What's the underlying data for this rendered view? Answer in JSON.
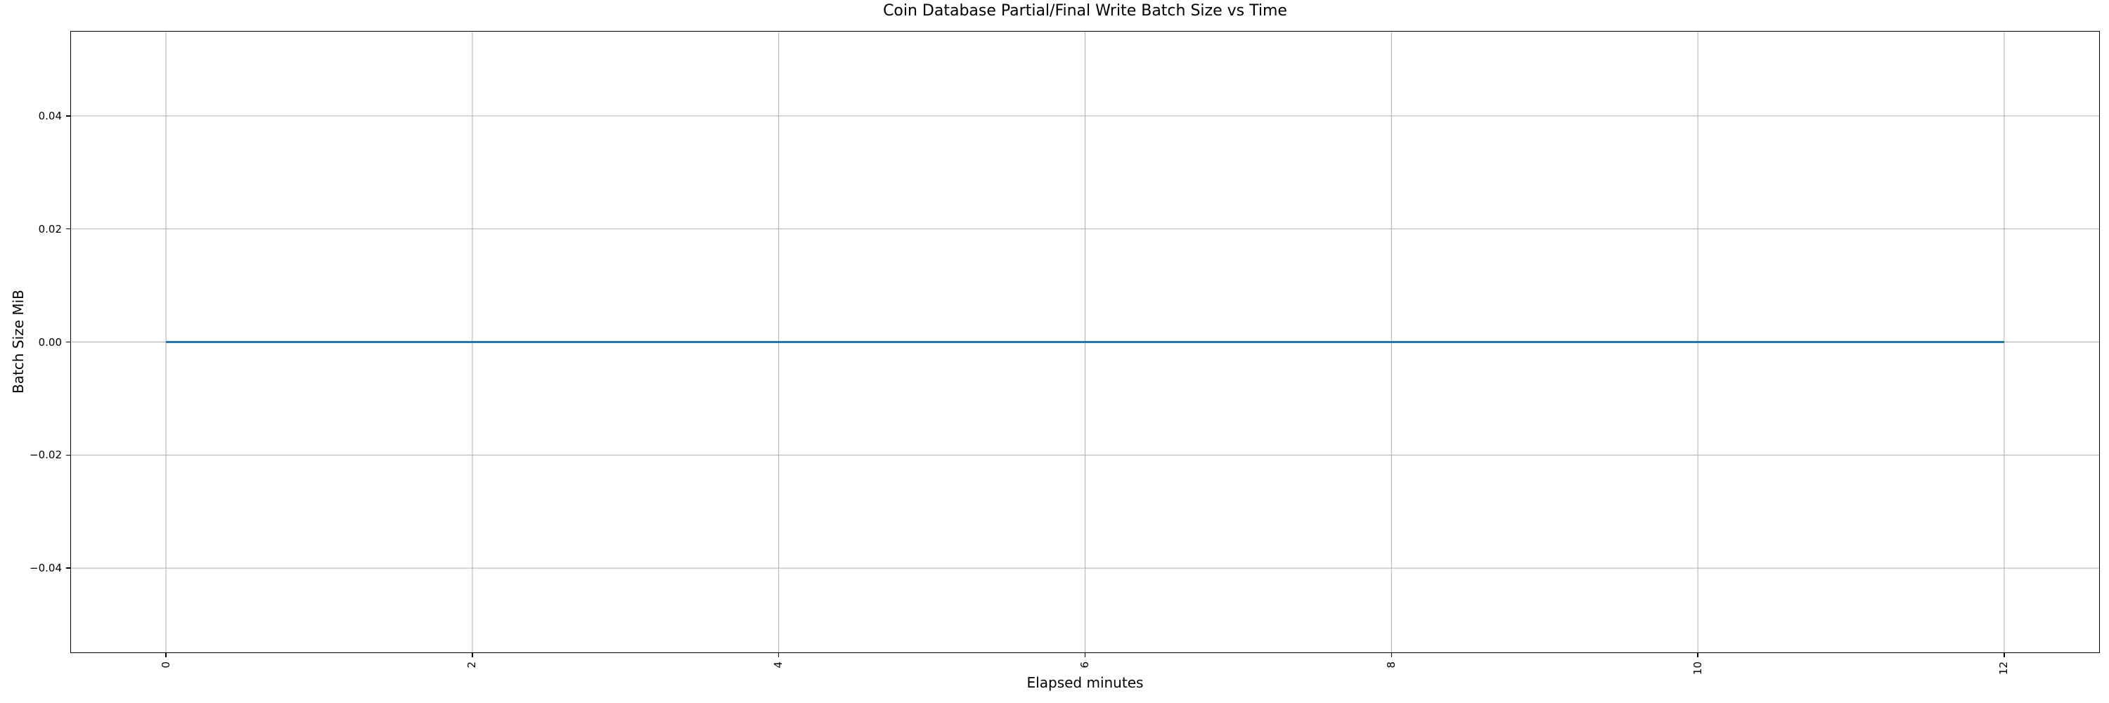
{
  "chart_data": {
    "type": "line",
    "title": "Coin Database Partial/Final Write Batch Size vs Time",
    "xlabel": "Elapsed minutes",
    "ylabel": "Batch Size MiB",
    "xlim": [
      -0.62,
      12.62
    ],
    "ylim": [
      -0.0549,
      0.0549
    ],
    "grid": true,
    "legend": false,
    "xticks": {
      "values": [
        0,
        2,
        4,
        6,
        8,
        10,
        12
      ],
      "labels": [
        "0",
        "2",
        "4",
        "6",
        "8",
        "10",
        "12"
      ],
      "rotation_degrees": 90
    },
    "yticks": {
      "values": [
        0.04,
        0.02,
        0.0,
        -0.02,
        -0.04
      ],
      "labels": [
        "0.04",
        "0.02",
        "0.00",
        "−0.02",
        "−0.04"
      ]
    },
    "series": [
      {
        "name": "batch-size-line",
        "color": "#1f77b4",
        "x": [
          0,
          12
        ],
        "y": [
          0.0,
          0.0
        ]
      }
    ]
  },
  "colors": {
    "background": "#ffffff",
    "grid": "#b0b0b0",
    "spine": "#000000",
    "text": "#000000",
    "line": "#1f77b4"
  }
}
